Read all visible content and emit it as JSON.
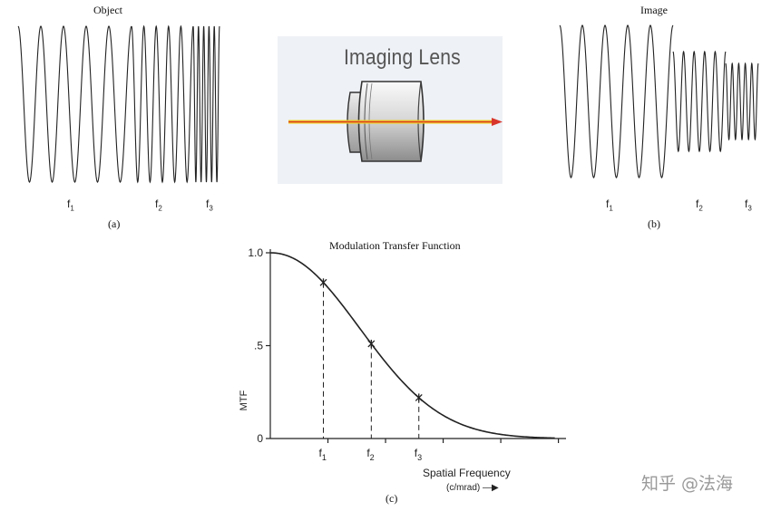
{
  "panel_a": {
    "title": "Object",
    "caption": "(a)",
    "freq_labels": [
      "f",
      "f",
      "f"
    ],
    "freq_subs": [
      "1",
      "2",
      "3"
    ]
  },
  "lens": {
    "title": "Imaging Lens"
  },
  "panel_b": {
    "title": "Image",
    "caption": "(b)",
    "freq_labels": [
      "f",
      "f",
      "f"
    ],
    "freq_subs": [
      "1",
      "2",
      "3"
    ]
  },
  "panel_c": {
    "title": "Modulation Transfer Function",
    "caption": "(c)",
    "ylabel": "MTF",
    "xlabel": "Spatial Frequency",
    "xunit": "(c/mrad) —▶",
    "yticks": [
      "1.0",
      ".5",
      "0"
    ],
    "xticks": [
      {
        "t": "f",
        "s": "1"
      },
      {
        "t": "f",
        "s": "2"
      },
      {
        "t": "f",
        "s": "3"
      }
    ]
  },
  "chart_data": {
    "type": "line",
    "title": "Modulation Transfer Function",
    "xlabel": "Spatial Frequency (c/mrad)",
    "ylabel": "MTF",
    "ylim": [
      0,
      1.0
    ],
    "marked_points": [
      {
        "label": "f1",
        "mtf": 0.84
      },
      {
        "label": "f2",
        "mtf": 0.51
      },
      {
        "label": "f3",
        "mtf": 0.22
      }
    ]
  },
  "watermark": "知乎 @法海",
  "colors": {
    "beam_yellow": "#f3d21c",
    "beam_red": "#d8362b",
    "panel_bg": "#eef1f6"
  }
}
